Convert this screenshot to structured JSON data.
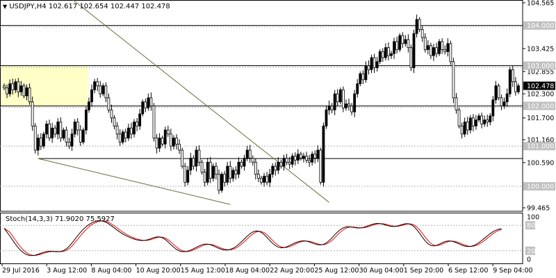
{
  "chart_data": [
    {
      "type": "candlestick",
      "symbol": "USDJPY,H4",
      "ohlc_header": "102.617 102.654 102.447 102.478",
      "yaxis": {
        "min": 99.465,
        "max": 104.565,
        "ticks": [
          "104.565",
          "103.425",
          "102.855",
          "102.300",
          "101.700",
          "101.160",
          "100.590",
          "99.465"
        ]
      },
      "xaxis": {
        "ticks": [
          "29 Jul 2016",
          "3 Aug 12:00",
          "8 Aug 04:00",
          "10 Aug 20:00",
          "15 Aug 12:00",
          "18 Aug 04:00",
          "22 Aug 20:00",
          "25 Aug 12:00",
          "30 Aug 04:00",
          "1 Sep 20:00",
          "6 Sep 12:00",
          "9 Sep 04:00"
        ]
      },
      "current_price": "102.478",
      "horizontal_levels": [
        {
          "label": "104.000",
          "value": 104.0,
          "style": "solid"
        },
        {
          "label": "103.000",
          "value": 103.0,
          "style": "solid"
        },
        {
          "label": "102.000",
          "value": 102.0,
          "style": "solid"
        },
        {
          "label": "101.000",
          "value": 101.0,
          "style": "dashed"
        },
        {
          "label": "100.000",
          "value": 100.0,
          "style": "dashed"
        }
      ],
      "support_line": 100.69,
      "trendlines": [
        {
          "from": [
            16,
            105.1
          ],
          "to": [
            115,
            99.6
          ]
        },
        {
          "from": [
            12,
            100.69
          ],
          "to": [
            80,
            99.55
          ]
        }
      ],
      "zone": {
        "from_bar": 0,
        "to_bar": 30,
        "low": 102.0,
        "high": 103.0,
        "color": "#ffffc8"
      },
      "closes": [
        102.45,
        102.3,
        102.55,
        102.4,
        102.6,
        102.35,
        102.5,
        102.25,
        102.45,
        102.1,
        101.5,
        100.9,
        101.2,
        101.0,
        101.3,
        101.55,
        101.2,
        101.45,
        101.3,
        101.6,
        101.2,
        101.4,
        101.1,
        101.0,
        101.3,
        101.6,
        101.4,
        101.1,
        101.4,
        101.9,
        102.1,
        102.4,
        102.6,
        102.5,
        102.3,
        102.5,
        102.2,
        101.9,
        101.7,
        101.5,
        101.3,
        101.1,
        101.35,
        101.2,
        101.45,
        101.3,
        101.6,
        101.5,
        101.8,
        102.1,
        101.95,
        102.2,
        102.0,
        101.2,
        100.95,
        101.2,
        101.05,
        101.4,
        101.3,
        101.0,
        101.2,
        101.05,
        100.9,
        100.5,
        100.1,
        100.4,
        100.7,
        100.5,
        100.9,
        100.6,
        100.35,
        100.1,
        100.6,
        100.2,
        100.5,
        100.3,
        99.9,
        100.3,
        100.1,
        100.5,
        100.2,
        100.4,
        100.3,
        100.6,
        100.5,
        100.7,
        100.9,
        100.7,
        100.6,
        100.3,
        100.2,
        100.1,
        100.25,
        100.1,
        100.3,
        100.5,
        100.4,
        100.6,
        100.5,
        100.7,
        100.6,
        100.55,
        100.75,
        100.65,
        100.8,
        100.7,
        100.75,
        100.65,
        100.6,
        100.8,
        100.7,
        100.9,
        100.1,
        101.5,
        101.9,
        102.0,
        101.9,
        102.3,
        102.1,
        102.4,
        101.95,
        102.05,
        102.0,
        101.85,
        102.3,
        102.55,
        102.8,
        102.65,
        103.0,
        102.9,
        103.2,
        102.95,
        103.1,
        103.35,
        103.2,
        103.45,
        103.25,
        103.3,
        103.6,
        103.4,
        103.75,
        103.55,
        103.65,
        103.45,
        102.95,
        103.8,
        104.15,
        103.9,
        103.7,
        103.4,
        103.5,
        103.25,
        103.45,
        103.3,
        103.6,
        103.4,
        103.35,
        103.55,
        103.1,
        102.2,
        101.9,
        101.5,
        101.3,
        101.6,
        101.4,
        101.7,
        101.5,
        101.65,
        101.75,
        101.55,
        101.65,
        101.6,
        101.75,
        102.15,
        102.5,
        102.2,
        102.0,
        102.1,
        102.3,
        102.9,
        102.6,
        102.35,
        102.5
      ],
      "indicator": {
        "name": "Stochastic",
        "label": "Stoch(14,3,3) 71.9020 75.5927",
        "ylim": [
          0,
          100
        ],
        "ticks": [
          "100",
          "80",
          "20",
          "0"
        ],
        "levels": [
          80,
          20
        ],
        "main_color": "#000000",
        "signal_color": "#ff0000",
        "main_line": [
          73.0,
          64.0,
          54.7,
          45.0,
          35.5,
          26.9,
          19.8,
          14.4,
          10.8,
          8.9,
          8.7,
          9.7,
          11.7,
          14.1,
          16.3,
          17.9,
          18.7,
          18.5,
          17.9,
          17.6,
          18.2,
          20.3,
          24.5,
          30.6,
          38.3,
          46.8,
          55.4,
          63.4,
          70.6,
          76.8,
          81.8,
          85.8,
          88.7,
          90.4,
          90.8,
          89.8,
          87.3,
          83.5,
          78.8,
          73.7,
          68.5,
          63.8,
          59.6,
          55.9,
          52.7,
          49.9,
          47.5,
          45.6,
          44.4,
          44.0,
          44.6,
          46.3,
          48.7,
          51.1,
          52.7,
          52.7,
          50.6,
          46.6,
          40.9,
          34.5,
          28.3,
          23.2,
          19.7,
          17.9,
          17.8,
          19.1,
          21.6,
          24.7,
          28.2,
          31.5,
          34.1,
          35.6,
          35.6,
          34.2,
          31.6,
          28.6,
          25.6,
          23.2,
          21.9,
          21.8,
          23.2,
          25.9,
          29.9,
          35.1,
          41.2,
          47.8,
          54.3,
          60.1,
          64.4,
          66.6,
          66.3,
          63.3,
          58.1,
          51.4,
          44.2,
          37.5,
          32.2,
          28.6,
          27.0,
          27.4,
          29.3,
          32.2,
          35.5,
          38.7,
          41.2,
          42.9,
          43.4,
          42.7,
          40.8,
          38.4,
          36.0,
          34.2,
          33.8,
          35.2,
          38.6,
          43.9,
          50.5,
          57.7,
          64.4,
          70.0,
          74.0,
          76.2,
          76.6,
          75.8,
          74.6,
          73.8,
          73.8,
          74.9,
          76.9,
          79.4,
          81.8,
          83.6,
          84.4,
          84.1,
          82.7,
          80.7,
          78.8,
          77.5,
          77.2,
          78.2,
          80.1,
          82.2,
          83.8,
          83.9,
          81.8,
          77.2,
          70.1,
          61.3,
          51.9,
          43.3,
          36.6,
          32.5,
          31.3,
          32.6,
          35.5,
          38.8,
          41.6,
          43.1,
          43.1,
          41.6,
          39.1,
          36.1,
          33.2,
          31.0,
          29.9,
          30.2,
          31.9,
          35.0,
          39.2,
          44.2,
          49.7,
          55.2,
          60.4,
          64.8,
          68.3,
          70.7,
          71.9
        ]
      }
    }
  ]
}
